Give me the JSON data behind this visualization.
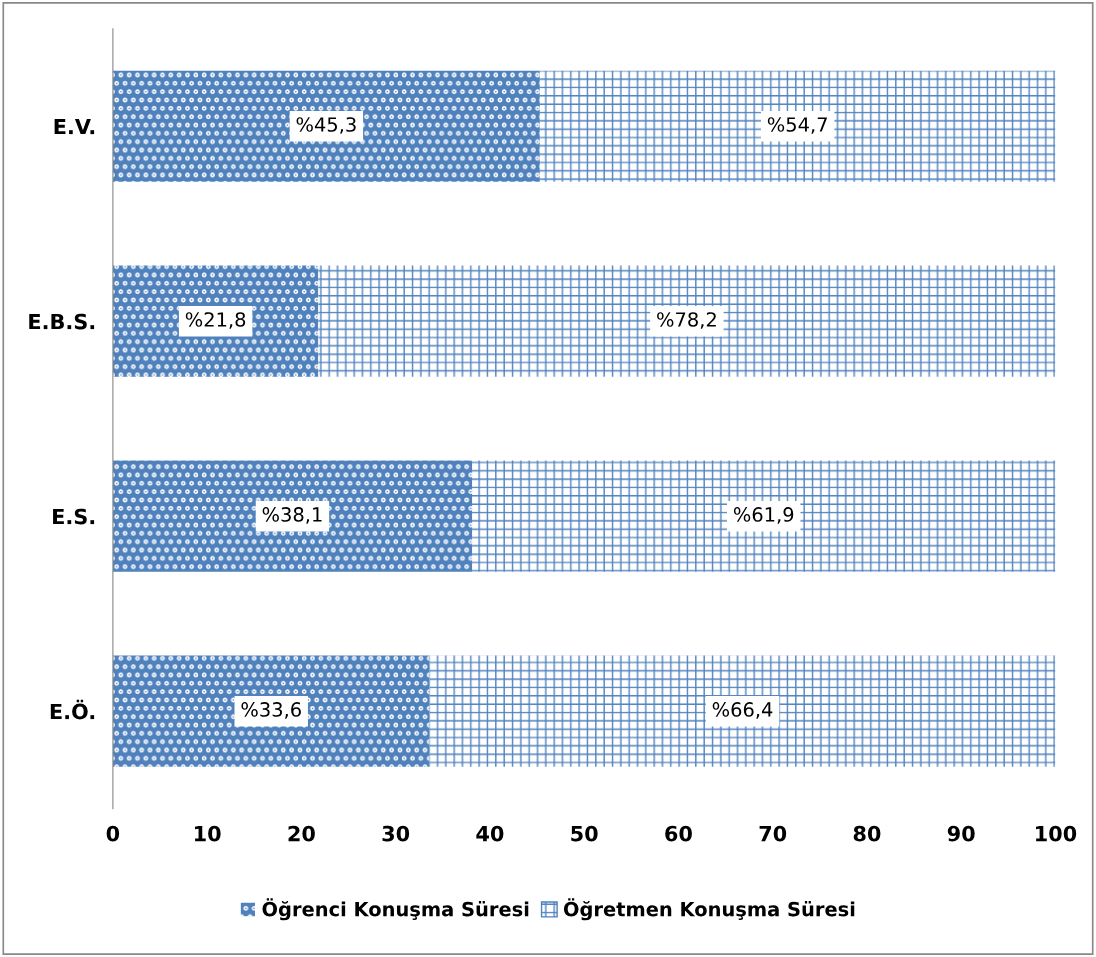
{
  "chart_data": {
    "type": "bar",
    "orientation": "horizontal",
    "stacked": true,
    "categories": [
      "E.V.",
      "E.B.S.",
      "E.S.",
      "E.Ö."
    ],
    "series": [
      {
        "name": "Öğrenci Konuşma Süresi",
        "color": "#4f81bd",
        "values": [
          45.3,
          21.8,
          38.1,
          33.6
        ],
        "value_labels": [
          "%45,3",
          "%21,8",
          "%38,1",
          "%33,6"
        ]
      },
      {
        "name": "Öğretmen Konuşma Süresi",
        "color": "#4f81bd",
        "values": [
          54.7,
          78.2,
          61.9,
          66.4
        ],
        "value_labels": [
          "%54,7",
          "%78,2",
          "%61,9",
          "%66,4"
        ]
      }
    ],
    "xlim": [
      0,
      100
    ],
    "xticks": [
      0,
      10,
      20,
      30,
      40,
      50,
      60,
      70,
      80,
      90,
      100
    ],
    "grid": false,
    "legend": "bottom"
  }
}
